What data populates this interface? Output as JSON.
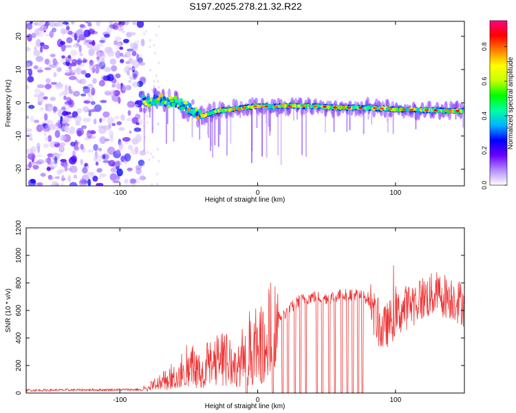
{
  "title": "S197.2025.278.21.32.R22",
  "chart_data": [
    {
      "type": "heatmap",
      "name": "spectrogram",
      "xlabel": "Height of straight line (km)",
      "ylabel": "Frequency (Hz)",
      "xlim": [
        -168,
        150
      ],
      "ylim": [
        -25,
        24.5
      ],
      "xticks": [
        -100,
        0,
        100
      ],
      "yticks": [
        -20,
        -10,
        0,
        10,
        20
      ],
      "colorbar": {
        "label": "Normalized spectral amplitude",
        "range": [
          0,
          0.95
        ],
        "ticks": [
          0.0,
          0.2,
          0.4,
          0.6,
          0.8
        ],
        "colors": [
          "#ffffff",
          "#b48cff",
          "#6a00ff",
          "#0000ff",
          "#00b4ff",
          "#00ffa0",
          "#00ff00",
          "#c8ff00",
          "#ffff00",
          "#ff8000",
          "#ff0000",
          "#ff0080"
        ]
      },
      "noise_region_x": [
        -168,
        -83
      ],
      "signal_track": {
        "x": [
          -83,
          -70,
          -60,
          -50,
          -45,
          -40,
          -30,
          -20,
          -10,
          0,
          10,
          20,
          40,
          60,
          80,
          100,
          120,
          150
        ],
        "freq": [
          0.5,
          0.8,
          0.0,
          -1.5,
          -3.0,
          -4.0,
          -2.5,
          -2.0,
          -1.5,
          -1.0,
          -1.2,
          -1.0,
          -1.0,
          -1.5,
          -1.5,
          -2.0,
          -2.2,
          -2.5
        ]
      }
    },
    {
      "type": "line",
      "name": "snr",
      "xlabel": "Height of straight line (km)",
      "ylabel": "SNR (10 * v/v)",
      "xlim": [
        -168,
        150
      ],
      "ylim": [
        0,
        1200
      ],
      "xticks": [
        -100,
        0,
        100
      ],
      "yticks": [
        0,
        200,
        400,
        600,
        800,
        1000,
        1200
      ],
      "color": "#ee3333",
      "envelope": {
        "x": [
          -168,
          -85,
          -80,
          -70,
          -60,
          -50,
          -40,
          -30,
          -20,
          -10,
          0,
          10,
          20,
          30,
          40,
          50,
          60,
          70,
          80,
          85,
          90,
          100,
          110,
          120,
          130,
          140,
          150
        ],
        "y": [
          20,
          25,
          40,
          90,
          150,
          230,
          250,
          270,
          290,
          330,
          440,
          520,
          580,
          670,
          700,
          690,
          710,
          720,
          690,
          560,
          450,
          560,
          640,
          690,
          720,
          700,
          640
        ]
      },
      "dropouts_x": [
        -8,
        11,
        18,
        22,
        27,
        31,
        35,
        43,
        47,
        52,
        56,
        61,
        65,
        69,
        73,
        76
      ]
    }
  ]
}
